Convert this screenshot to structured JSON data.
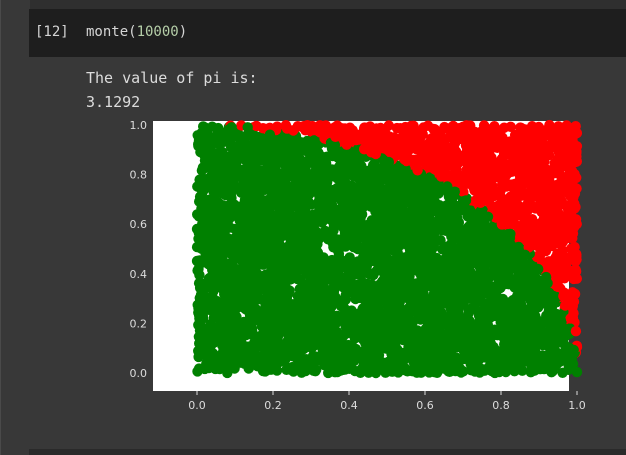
{
  "cell": {
    "execution_count": "[12]",
    "code_fn": "monte(",
    "code_arg": "10000",
    "code_close": ")"
  },
  "output": {
    "line1": "The value of pi is:",
    "line2": "3.1292"
  },
  "colors": {
    "inside": "#008000",
    "outside": "#ff0000",
    "edge_hint": "#0000ff",
    "plot_bg": "#ffffff",
    "notebook_bg": "#383838"
  },
  "chart_data": {
    "type": "scatter",
    "xlim": [
      0,
      1
    ],
    "ylim": [
      0,
      1
    ],
    "xticks": [
      "0.0",
      "0.2",
      "0.4",
      "0.6",
      "0.8",
      "1.0"
    ],
    "yticks": [
      "0.0",
      "0.2",
      "0.4",
      "0.6",
      "0.8",
      "1.0"
    ],
    "grid": false,
    "legend": "none",
    "series": [
      {
        "region": "inside",
        "rule": "x^2 + y^2 <= 1",
        "color": "#008000"
      },
      {
        "region": "outside",
        "rule": "x^2 + y^2 > 1",
        "color": "#ff0000"
      }
    ],
    "n_points": 10000
  }
}
